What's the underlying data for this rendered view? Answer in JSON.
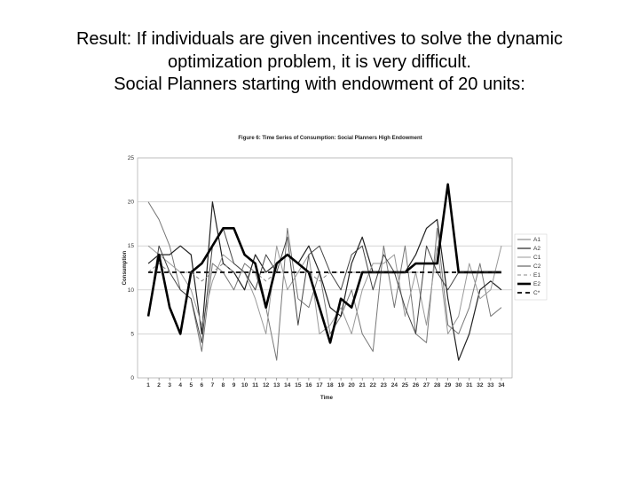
{
  "slide": {
    "title_lines": [
      "Result: If individuals are given incentives to solve the dynamic",
      "optimization problem, it is very difficult.",
      "Social Planners starting with endowment of 20 units:"
    ]
  },
  "chart_data": {
    "type": "line",
    "title": "Figure 6: Time Series of Consumption: Social Planners High Endowment",
    "x_label": "Time",
    "y_label": "Consumption",
    "x": [
      1,
      2,
      3,
      4,
      5,
      6,
      7,
      8,
      9,
      10,
      11,
      12,
      13,
      14,
      15,
      16,
      17,
      18,
      19,
      20,
      21,
      22,
      23,
      24,
      25,
      26,
      27,
      28,
      29,
      30,
      31,
      32,
      33,
      34
    ],
    "xlim": [
      0,
      35
    ],
    "xticks": [
      1,
      2,
      3,
      4,
      5,
      6,
      7,
      8,
      9,
      10,
      11,
      12,
      13,
      14,
      15,
      16,
      17,
      18,
      19,
      20,
      21,
      22,
      23,
      24,
      25,
      26,
      27,
      28,
      29,
      30,
      31,
      32,
      33,
      34
    ],
    "ylim": [
      0,
      25
    ],
    "yticks": [
      0,
      5,
      10,
      15,
      20,
      25
    ],
    "grid": true,
    "legend": "right",
    "series": [
      {
        "name": "A1",
        "color": "#777777",
        "width": 1,
        "dash": "",
        "values": [
          20,
          18,
          15,
          10,
          9,
          3,
          13,
          12,
          10,
          13,
          12,
          8,
          2,
          17,
          9,
          8,
          12,
          5,
          7,
          10,
          5,
          3,
          15,
          8,
          15,
          5,
          4,
          17,
          6,
          5,
          8,
          13,
          7,
          8
        ]
      },
      {
        "name": "A2",
        "color": "#222222",
        "width": 1.2,
        "dash": "",
        "values": [
          13,
          14,
          14,
          15,
          14,
          5,
          20,
          13,
          12,
          10,
          14,
          12,
          13,
          14,
          13,
          15,
          12,
          8,
          7,
          13,
          16,
          12,
          12,
          12,
          12,
          14,
          17,
          18,
          9,
          2,
          5,
          10,
          11,
          10
        ]
      },
      {
        "name": "C1",
        "color": "#999999",
        "width": 1,
        "dash": "",
        "values": [
          15,
          14,
          13,
          12,
          10,
          6,
          11,
          14,
          13,
          12,
          9,
          5,
          15,
          10,
          12,
          14,
          5,
          6,
          8,
          5,
          10,
          13,
          13,
          14,
          7,
          12,
          6,
          15,
          5,
          7,
          13,
          9,
          10,
          15
        ]
      },
      {
        "name": "C2",
        "color": "#444444",
        "width": 1,
        "dash": "",
        "values": [
          7,
          15,
          12,
          10,
          9,
          4,
          15,
          17,
          13,
          12,
          10,
          14,
          12,
          16,
          6,
          14,
          15,
          12,
          10,
          14,
          15,
          10,
          14,
          12,
          8,
          5,
          15,
          12,
          10,
          12,
          12,
          12,
          12,
          12
        ]
      },
      {
        "name": "E1",
        "color": "#888888",
        "width": 1,
        "dash": "4 3",
        "values": [
          12,
          13,
          12,
          12,
          12,
          11,
          12,
          13,
          12,
          12,
          12,
          11,
          12,
          12,
          12,
          12,
          11,
          12,
          12,
          12,
          12,
          12,
          12,
          12,
          12,
          12,
          12,
          12,
          12,
          12,
          12,
          12,
          12,
          12
        ]
      },
      {
        "name": "E2",
        "color": "#000000",
        "width": 2.6,
        "dash": "",
        "values": [
          7,
          14,
          8,
          5,
          12,
          13,
          15,
          17,
          17,
          14,
          13,
          8,
          13,
          14,
          13,
          12,
          8,
          4,
          9,
          8,
          12,
          12,
          12,
          12,
          12,
          13,
          13,
          13,
          22,
          12,
          12,
          12,
          12,
          12
        ]
      },
      {
        "name": "C*",
        "color": "#222222",
        "width": 2,
        "dash": "5 4",
        "values": [
          12,
          12,
          12,
          12,
          12,
          12,
          12,
          12,
          12,
          12,
          12,
          12,
          12,
          12,
          12,
          12,
          12,
          12,
          12,
          12,
          12,
          12,
          12,
          12,
          12,
          12,
          12,
          12,
          12,
          12,
          12,
          12,
          12,
          12
        ]
      }
    ]
  }
}
